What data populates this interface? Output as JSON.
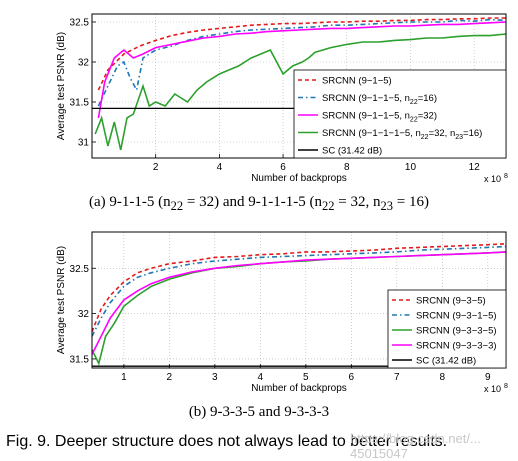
{
  "charts": [
    {
      "chart_data": {
        "type": "line",
        "xlabel": "Number of backprops",
        "ylabel": "Average test PSNR (dB)",
        "x_exponent_label": "x 10",
        "x_exponent_power": "8",
        "xlim": [
          0,
          13
        ],
        "ylim": [
          30.8,
          32.6
        ],
        "xticks": [
          2,
          4,
          6,
          8,
          10,
          12
        ],
        "yticks": [
          31,
          31.5,
          32,
          32.5
        ],
        "grid": true,
        "legend": "bottom-right",
        "series": [
          {
            "name": "SRCNN (9−1−5)",
            "color": "#e41a1c",
            "dash": "4,3",
            "x": [
              0.2,
              0.5,
              1.0,
              1.5,
              2.0,
              2.5,
              3.0,
              3.5,
              4.0,
              4.5,
              5.0,
              5.5,
              6.0,
              6.5,
              7.0,
              7.5,
              8.0,
              8.5,
              9.0,
              9.5,
              10.0,
              10.5,
              11.0,
              11.5,
              12.0,
              12.5,
              13.0
            ],
            "y": [
              31.65,
              31.9,
              32.1,
              32.2,
              32.27,
              32.33,
              32.37,
              32.4,
              32.42,
              32.44,
              32.46,
              32.47,
              32.48,
              32.48,
              32.49,
              32.5,
              32.5,
              32.51,
              32.51,
              32.52,
              32.52,
              32.53,
              32.53,
              32.54,
              32.54,
              32.55,
              32.55
            ]
          },
          {
            "name": "SRCNN (9−1−1−5, n",
            "sub": [
              "22"
            ],
            "suffix_parts": [
              "=16)"
            ],
            "color": "#1f77b4",
            "dash": "5,3,1.5,3",
            "x": [
              0.2,
              0.5,
              0.8,
              1.0,
              1.2,
              1.4,
              1.6,
              2.0,
              2.5,
              3.0,
              3.5,
              4.0,
              4.5,
              5.0,
              5.5,
              6.0,
              6.5,
              7.0,
              7.5,
              8.0,
              8.5,
              9.0,
              9.5,
              10.0,
              10.5,
              11.0,
              11.5,
              12.0,
              12.5,
              13.0
            ],
            "y": [
              31.45,
              31.7,
              31.95,
              32.0,
              31.8,
              31.65,
              32.05,
              32.15,
              32.2,
              32.27,
              32.32,
              32.35,
              32.38,
              32.4,
              32.41,
              32.42,
              32.43,
              32.44,
              32.46,
              32.46,
              32.47,
              32.48,
              32.49,
              32.5,
              32.5,
              32.5,
              32.52,
              32.51,
              32.53,
              32.52
            ]
          },
          {
            "name": "SRCNN (9−1−1−5, n",
            "sub": [
              "22"
            ],
            "suffix_parts": [
              "=32)"
            ],
            "color": "#ff00ff",
            "dash": "",
            "x": [
              0.2,
              0.4,
              0.7,
              1.0,
              1.3,
              1.6,
              2.0,
              2.5,
              3.0,
              3.5,
              4.0,
              4.5,
              5.0,
              5.5,
              6.0,
              6.5,
              7.0,
              7.5,
              8.0,
              8.5,
              9.0,
              9.5,
              10.0,
              10.5,
              11.0,
              11.5,
              12.0,
              12.5,
              13.0
            ],
            "y": [
              31.3,
              31.75,
              32.05,
              32.15,
              32.05,
              32.1,
              32.18,
              32.22,
              32.26,
              32.3,
              32.32,
              32.35,
              32.36,
              32.38,
              32.39,
              32.4,
              32.41,
              32.42,
              32.42,
              32.43,
              32.44,
              32.45,
              32.45,
              32.46,
              32.47,
              32.47,
              32.48,
              32.49,
              32.5
            ]
          },
          {
            "name": "SRCNN (9−1−1−1−5, n",
            "sub": [
              "22",
              "23"
            ],
            "suffix_parts": [
              "=32, n",
              "=16)"
            ],
            "color": "#2ca02c",
            "dash": "",
            "x": [
              0.1,
              0.3,
              0.5,
              0.7,
              0.9,
              1.1,
              1.3,
              1.6,
              1.8,
              2.0,
              2.3,
              2.6,
              3.0,
              3.3,
              3.6,
              4.0,
              4.3,
              4.6,
              5.0,
              5.3,
              5.6,
              6.0,
              6.3,
              6.6,
              6.8,
              7.0,
              7.5,
              8.0,
              8.5,
              9.0,
              9.5,
              10.0,
              10.5,
              11.0,
              11.5,
              12.0,
              12.5,
              13.0
            ],
            "y": [
              31.1,
              31.3,
              30.95,
              31.25,
              30.9,
              31.3,
              31.35,
              31.7,
              31.45,
              31.5,
              31.45,
              31.6,
              31.5,
              31.65,
              31.75,
              31.85,
              31.9,
              31.95,
              32.05,
              32.1,
              32.15,
              31.85,
              31.95,
              32.0,
              32.05,
              32.12,
              32.18,
              32.22,
              32.25,
              32.25,
              32.27,
              32.28,
              32.3,
              32.3,
              32.32,
              32.33,
              32.33,
              32.35
            ]
          },
          {
            "name": "SC (31.42 dB)",
            "color": "#000000",
            "dash": "",
            "x": [
              0,
              13
            ],
            "y": [
              31.42,
              31.42
            ]
          }
        ]
      },
      "caption": "(a) 9-1-1-5 (n",
      "caption_sub_1": "22",
      "caption_mid": " = 32) and 9-1-1-1-5 (n",
      "caption_sub_2": "22",
      "caption_mid2": " = 32, n",
      "caption_sub_3": "23",
      "caption_end": " = 16)"
    },
    {
      "chart_data": {
        "type": "line",
        "xlabel": "Number of backprops",
        "ylabel": "Average test PSNR (dB)",
        "x_exponent_label": "x 10",
        "x_exponent_power": "8",
        "xlim": [
          0.3,
          9.4
        ],
        "ylim": [
          31.4,
          32.9
        ],
        "xticks": [
          1,
          2,
          3,
          4,
          5,
          6,
          7,
          8,
          9
        ],
        "yticks": [
          31.5,
          32,
          32.5
        ],
        "grid": true,
        "legend": "bottom-right",
        "series": [
          {
            "name": "SRCNN (9−3−5)",
            "color": "#e41a1c",
            "dash": "4,3",
            "x": [
              0.3,
              0.5,
              0.7,
              1.0,
              1.3,
              1.6,
              2.0,
              2.5,
              3.0,
              3.5,
              4.0,
              4.5,
              5.0,
              5.5,
              6.0,
              6.5,
              7.0,
              7.5,
              8.0,
              8.5,
              9.0,
              9.4
            ],
            "y": [
              31.8,
              32.05,
              32.2,
              32.35,
              32.45,
              32.5,
              32.55,
              32.58,
              32.62,
              32.63,
              32.65,
              32.66,
              32.68,
              32.68,
              32.69,
              32.7,
              32.72,
              32.73,
              32.74,
              32.75,
              32.76,
              32.77
            ]
          },
          {
            "name": "SRCNN (9−3−1−5)",
            "color": "#1f77b4",
            "dash": "5,3,1.5,3",
            "x": [
              0.3,
              0.5,
              0.7,
              1.0,
              1.3,
              1.6,
              2.0,
              2.5,
              3.0,
              3.5,
              4.0,
              4.5,
              5.0,
              5.5,
              6.0,
              6.5,
              7.0,
              7.5,
              8.0,
              8.5,
              9.0,
              9.4
            ],
            "y": [
              31.75,
              31.95,
              32.12,
              32.3,
              32.4,
              32.45,
              32.5,
              32.55,
              32.58,
              32.6,
              32.62,
              32.63,
              32.64,
              32.65,
              32.66,
              32.67,
              32.68,
              32.7,
              32.71,
              32.72,
              32.73,
              32.74
            ]
          },
          {
            "name": "SRCNN (9−3−3−5)",
            "color": "#2ca02c",
            "dash": "",
            "x": [
              0.3,
              0.45,
              0.6,
              0.8,
              1.0,
              1.3,
              1.6,
              2.0,
              2.5,
              3.0,
              3.5,
              4.0,
              4.5,
              5.0,
              5.5,
              6.0,
              6.5,
              7.0,
              7.5,
              8.0,
              8.5,
              9.0,
              9.4
            ],
            "y": [
              31.6,
              31.45,
              31.75,
              31.9,
              32.08,
              32.2,
              32.3,
              32.38,
              32.45,
              32.5,
              32.52,
              32.55,
              32.57,
              32.58,
              32.6,
              32.61,
              32.62,
              32.63,
              32.64,
              32.65,
              32.66,
              32.67,
              32.68
            ]
          },
          {
            "name": "SRCNN (9−3−3−3)",
            "color": "#ff00ff",
            "dash": "",
            "x": [
              0.3,
              0.5,
              0.7,
              1.0,
              1.3,
              1.6,
              2.0,
              2.5,
              3.0,
              3.5,
              4.0,
              4.5,
              5.0,
              5.5,
              6.0,
              6.5,
              7.0,
              7.5,
              8.0,
              8.5,
              9.0,
              9.4
            ],
            "y": [
              31.55,
              31.75,
              31.95,
              32.15,
              32.25,
              32.33,
              32.4,
              32.46,
              32.5,
              32.53,
              32.55,
              32.57,
              32.59,
              32.6,
              32.61,
              32.62,
              32.63,
              32.64,
              32.65,
              32.66,
              32.67,
              32.68
            ]
          },
          {
            "name": "SC (31.42 dB)",
            "color": "#000000",
            "dash": "",
            "x": [
              0.3,
              9.4
            ],
            "y": [
              31.42,
              31.42
            ]
          }
        ]
      },
      "caption": "(b) 9-3-3-5 and 9-3-3-3"
    }
  ],
  "figure_caption": "Fig. 9. Deeper structure does not always lead to better results.",
  "watermark": "https://blog.csdn.net/... 45015047"
}
